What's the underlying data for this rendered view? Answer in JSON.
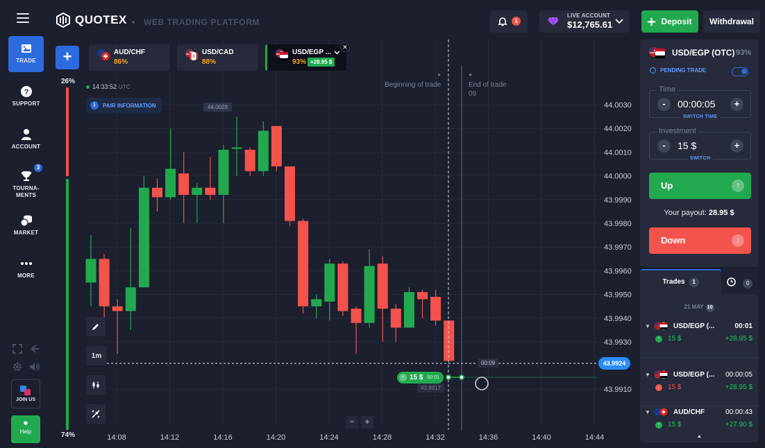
{
  "sidebar": {
    "items": [
      {
        "label": "TRADE",
        "icon": "image-icon"
      },
      {
        "label": "SUPPORT",
        "icon": "help-circle-icon"
      },
      {
        "label": "ACCOUNT",
        "icon": "user-icon"
      },
      {
        "label_line1": "TOURNA-",
        "label_line2": "MENTS",
        "icon": "trophy-icon",
        "badge": "3"
      },
      {
        "label": "MARKET",
        "icon": "coins-icon"
      },
      {
        "label": "MORE",
        "icon": "more-dots-icon"
      }
    ],
    "join_label": "JOIN US",
    "help_label": "Help"
  },
  "header": {
    "brand": "QUOTEX",
    "platform": "WEB TRADING PLATFORM",
    "notifications_count": "1",
    "account_type": "LIVE ACCOUNT",
    "balance": "$12,765.61",
    "deposit_label": "Deposit",
    "withdraw_label": "Withdrawal"
  },
  "asset_tabs": [
    {
      "name": "AUD/CHF",
      "payout": "86%"
    },
    {
      "name": "USD/CAD",
      "payout": "88%"
    },
    {
      "name": "USD/EGP ...",
      "payout": "93%",
      "profit": "+28.95 $",
      "active": true
    }
  ],
  "chart": {
    "sentiment_up": "26%",
    "sentiment_down": "74%",
    "server_time": "14:33:52",
    "timezone": "UTC",
    "pair_info_label": "PAIR INFORMATION",
    "hover_price": "44.0028",
    "beginning_label": "Beginning of trade",
    "end_label": "End of trade",
    "end_sub": "09",
    "timeframe": "1m",
    "current_price": "43.9924",
    "countdown": "00:09",
    "trade_amount": "15 $",
    "trade_timer": "00:01",
    "entry_price": "43.9917",
    "colors": {
      "up": "#22a94f",
      "down": "#f2534c",
      "accent": "#2b6bde"
    }
  },
  "chart_data": {
    "type": "candlestick",
    "y_ticks": [
      "44.0030",
      "44.0020",
      "44.0010",
      "44.0000",
      "43.9990",
      "43.9980",
      "43.9970",
      "43.9960",
      "43.9950",
      "43.9940",
      "43.9930",
      "43.9910"
    ],
    "x_ticks": [
      "14:08",
      "14:12",
      "14:16",
      "14:20",
      "14:24",
      "14:28",
      "14:32",
      "14:36",
      "14:40",
      "14:44"
    ],
    "candles": [
      {
        "o": 43.9955,
        "c": 43.9965,
        "h": 43.9975,
        "l": 43.9945
      },
      {
        "o": 43.9965,
        "c": 43.9945,
        "h": 43.9967,
        "l": 43.9938
      },
      {
        "o": 43.9945,
        "c": 43.9943,
        "h": 43.9948,
        "l": 43.9925
      },
      {
        "o": 43.9943,
        "c": 43.9953,
        "h": 43.9978,
        "l": 43.9935
      },
      {
        "o": 43.9953,
        "c": 43.9995,
        "h": 44.0,
        "l": 43.9953
      },
      {
        "o": 43.9995,
        "c": 43.9991,
        "h": 43.9999,
        "l": 43.9985
      },
      {
        "o": 43.9991,
        "c": 44.0003,
        "h": 44.002,
        "l": 43.999
      },
      {
        "o": 44.0001,
        "c": 43.9992,
        "h": 44.001,
        "l": 43.998
      },
      {
        "o": 43.9992,
        "c": 43.9995,
        "h": 43.9997,
        "l": 43.998
      },
      {
        "o": 43.9995,
        "c": 43.9992,
        "h": 44.0008,
        "l": 43.999
      },
      {
        "o": 43.9992,
        "c": 44.0011,
        "h": 44.0013,
        "l": 43.998
      },
      {
        "o": 44.0012,
        "c": 44.0012,
        "h": 44.0025,
        "l": 44.0
      },
      {
        "o": 44.0011,
        "c": 44.0002,
        "h": 44.0012,
        "l": 44.0
      },
      {
        "o": 44.0002,
        "c": 44.0019,
        "h": 44.0023,
        "l": 44.0
      },
      {
        "o": 44.0021,
        "c": 44.0004,
        "h": 44.0021,
        "l": 44.0002
      },
      {
        "o": 44.0004,
        "c": 43.9981,
        "h": 44.0004,
        "l": 43.9979
      },
      {
        "o": 43.9981,
        "c": 43.9945,
        "h": 43.9982,
        "l": 43.9942
      },
      {
        "o": 43.9945,
        "c": 43.9948,
        "h": 43.995,
        "l": 43.994
      },
      {
        "o": 43.9947,
        "c": 43.9963,
        "h": 43.9965,
        "l": 43.9939
      },
      {
        "o": 43.9963,
        "c": 43.9943,
        "h": 43.9964,
        "l": 43.9941
      },
      {
        "o": 43.9944,
        "c": 43.9938,
        "h": 43.9945,
        "l": 43.9925
      },
      {
        "o": 43.9938,
        "c": 43.9962,
        "h": 43.9969,
        "l": 43.9936
      },
      {
        "o": 43.9963,
        "c": 43.9944,
        "h": 43.9966,
        "l": 43.993
      },
      {
        "o": 43.9944,
        "c": 43.9936,
        "h": 43.9946,
        "l": 43.993
      },
      {
        "o": 43.9936,
        "c": 43.9951,
        "h": 43.9953,
        "l": 43.9936
      },
      {
        "o": 43.9951,
        "c": 43.9948,
        "h": 43.9952,
        "l": 43.994
      },
      {
        "o": 43.9949,
        "c": 43.9939,
        "h": 43.9952,
        "l": 43.9937
      },
      {
        "o": 43.9939,
        "c": 43.9922,
        "h": 43.9939,
        "l": 43.9922
      }
    ]
  },
  "trade_panel": {
    "asset": "USD/EGP (OTC)",
    "asset_payout": "93%",
    "pending_label": "PENDING TRADE",
    "time_label": "Time",
    "time_value": "00:00:05",
    "switch_time_label": "SWITCH TIME",
    "investment_label": "Investment",
    "investment_value": "15 $",
    "switch_label": "SWITCH",
    "up_label": "Up",
    "payout_label": "Your payout:",
    "payout_value": "28.95 $",
    "down_label": "Down"
  },
  "trades": {
    "tab_label": "Trades",
    "tab_count": "1",
    "history_count": "0",
    "date": "21 MAY",
    "date_count": "10",
    "rows": [
      {
        "pair": "USD/EGP (...",
        "time": "00:01",
        "amount": "15 $",
        "profit": "+28.95 $",
        "direction": "up"
      },
      {
        "pair": "USD/EGP (...",
        "time": "00:00:05",
        "amount": "15 $",
        "profit": "+28.95 $",
        "direction": "down"
      },
      {
        "pair": "AUD/CHF",
        "time": "00:00:43",
        "amount": "15 $",
        "profit": "+27.90 $",
        "direction": "up"
      }
    ]
  }
}
